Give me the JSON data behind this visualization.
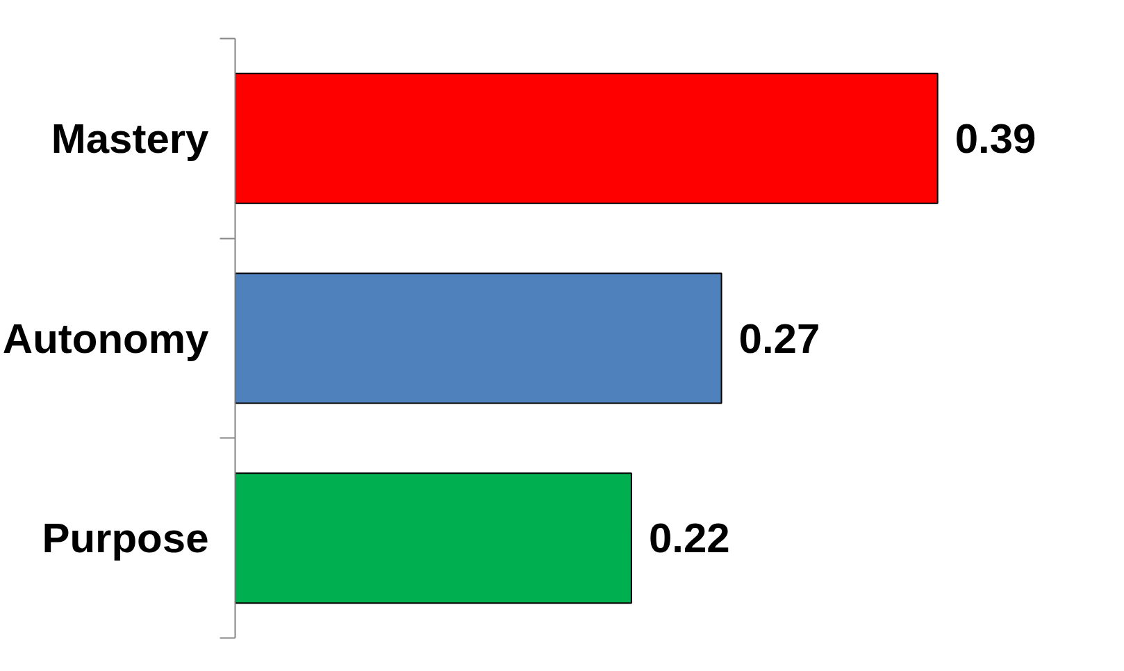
{
  "chart_data": {
    "type": "bar",
    "orientation": "horizontal",
    "categories": [
      "Mastery",
      "Autonomy",
      "Purpose"
    ],
    "values": [
      0.39,
      0.27,
      0.22
    ],
    "colors": [
      "#ff0000",
      "#4f81bd",
      "#00b050"
    ],
    "data_labels": true,
    "grid": false
  }
}
